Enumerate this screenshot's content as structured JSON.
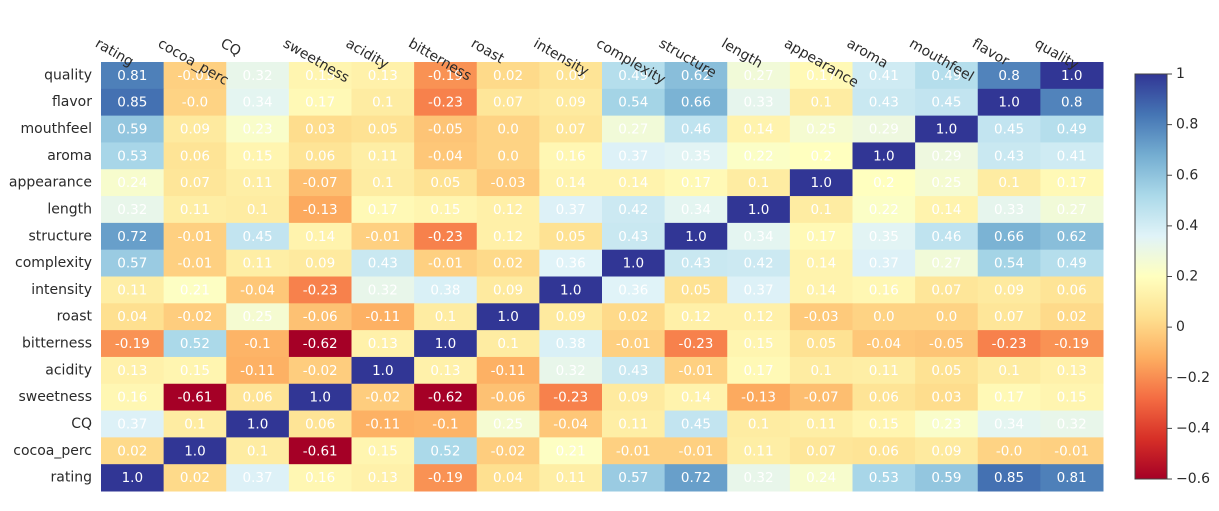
{
  "chart_data": {
    "type": "heatmap",
    "title": "",
    "x_categories": [
      "rating",
      "cocoa_perc",
      "CQ",
      "sweetness",
      "acidity",
      "bitterness",
      "roast",
      "intensity",
      "complexity",
      "structure",
      "length",
      "appearance",
      "aroma",
      "mouthfeel",
      "flavor",
      "quality"
    ],
    "y_categories": [
      "quality",
      "flavor",
      "mouthfeel",
      "aroma",
      "appearance",
      "length",
      "structure",
      "complexity",
      "intensity",
      "roast",
      "bitterness",
      "acidity",
      "sweetness",
      "CQ",
      "cocoa_perc",
      "rating"
    ],
    "values": [
      [
        "0.81",
        "-0.01",
        "0.32",
        "0.15",
        "0.13",
        "-0.19",
        "0.02",
        "0.06",
        "0.49",
        "0.62",
        "0.27",
        "0.17",
        "0.41",
        "0.49",
        "0.8",
        "1.0"
      ],
      [
        "0.85",
        "-0.0",
        "0.34",
        "0.17",
        "0.1",
        "-0.23",
        "0.07",
        "0.09",
        "0.54",
        "0.66",
        "0.33",
        "0.1",
        "0.43",
        "0.45",
        "1.0",
        "0.8"
      ],
      [
        "0.59",
        "0.09",
        "0.23",
        "0.03",
        "0.05",
        "-0.05",
        "0.0",
        "0.07",
        "0.27",
        "0.46",
        "0.14",
        "0.25",
        "0.29",
        "1.0",
        "0.45",
        "0.49"
      ],
      [
        "0.53",
        "0.06",
        "0.15",
        "0.06",
        "0.11",
        "-0.04",
        "0.0",
        "0.16",
        "0.37",
        "0.35",
        "0.22",
        "0.2",
        "1.0",
        "0.29",
        "0.43",
        "0.41"
      ],
      [
        "0.24",
        "0.07",
        "0.11",
        "-0.07",
        "0.1",
        "0.05",
        "-0.03",
        "0.14",
        "0.14",
        "0.17",
        "0.1",
        "1.0",
        "0.2",
        "0.25",
        "0.1",
        "0.17"
      ],
      [
        "0.32",
        "0.11",
        "0.1",
        "-0.13",
        "0.17",
        "0.15",
        "0.12",
        "0.37",
        "0.42",
        "0.34",
        "1.0",
        "0.1",
        "0.22",
        "0.14",
        "0.33",
        "0.27"
      ],
      [
        "0.72",
        "-0.01",
        "0.45",
        "0.14",
        "-0.01",
        "-0.23",
        "0.12",
        "0.05",
        "0.43",
        "1.0",
        "0.34",
        "0.17",
        "0.35",
        "0.46",
        "0.66",
        "0.62"
      ],
      [
        "0.57",
        "-0.01",
        "0.11",
        "0.09",
        "0.43",
        "-0.01",
        "0.02",
        "0.36",
        "1.0",
        "0.43",
        "0.42",
        "0.14",
        "0.37",
        "0.27",
        "0.54",
        "0.49"
      ],
      [
        "0.11",
        "0.21",
        "-0.04",
        "-0.23",
        "0.32",
        "0.38",
        "0.09",
        "1.0",
        "0.36",
        "0.05",
        "0.37",
        "0.14",
        "0.16",
        "0.07",
        "0.09",
        "0.06"
      ],
      [
        "0.04",
        "-0.02",
        "0.25",
        "-0.06",
        "-0.11",
        "0.1",
        "1.0",
        "0.09",
        "0.02",
        "0.12",
        "0.12",
        "-0.03",
        "0.0",
        "0.0",
        "0.07",
        "0.02"
      ],
      [
        "-0.19",
        "0.52",
        "-0.1",
        "-0.62",
        "0.13",
        "1.0",
        "0.1",
        "0.38",
        "-0.01",
        "-0.23",
        "0.15",
        "0.05",
        "-0.04",
        "-0.05",
        "-0.23",
        "-0.19"
      ],
      [
        "0.13",
        "0.15",
        "-0.11",
        "-0.02",
        "1.0",
        "0.13",
        "-0.11",
        "0.32",
        "0.43",
        "-0.01",
        "0.17",
        "0.1",
        "0.11",
        "0.05",
        "0.1",
        "0.13"
      ],
      [
        "0.16",
        "-0.61",
        "0.06",
        "1.0",
        "-0.02",
        "-0.62",
        "-0.06",
        "-0.23",
        "0.09",
        "0.14",
        "-0.13",
        "-0.07",
        "0.06",
        "0.03",
        "0.17",
        "0.15"
      ],
      [
        "0.37",
        "0.1",
        "1.0",
        "0.06",
        "-0.11",
        "-0.1",
        "0.25",
        "-0.04",
        "0.11",
        "0.45",
        "0.1",
        "0.11",
        "0.15",
        "0.23",
        "0.34",
        "0.32"
      ],
      [
        "0.02",
        "1.0",
        "0.1",
        "-0.61",
        "0.15",
        "0.52",
        "-0.02",
        "0.21",
        "-0.01",
        "-0.01",
        "0.11",
        "0.07",
        "0.06",
        "0.09",
        "-0.0",
        "-0.01"
      ],
      [
        "1.0",
        "0.02",
        "0.37",
        "0.16",
        "0.13",
        "-0.19",
        "0.04",
        "0.11",
        "0.57",
        "0.72",
        "0.32",
        "0.24",
        "0.53",
        "0.59",
        "0.85",
        "0.81"
      ]
    ],
    "colorscale": {
      "name": "RdYlBu",
      "range": [
        -0.6,
        1
      ],
      "stops": [
        "#a50026",
        "#d73027",
        "#f46d43",
        "#fdae61",
        "#fee090",
        "#ffffbf",
        "#e0f3f8",
        "#abd9e9",
        "#74add1",
        "#4575b4",
        "#313695"
      ],
      "tick_labels": [
        "1",
        "0.8",
        "0.6",
        "0.4",
        "0.2",
        "0",
        "−0.2",
        "−0.4",
        "−0.6"
      ],
      "tick_values": [
        1,
        0.8,
        0.6,
        0.4,
        0.2,
        0,
        -0.2,
        -0.4,
        -0.6
      ]
    }
  }
}
